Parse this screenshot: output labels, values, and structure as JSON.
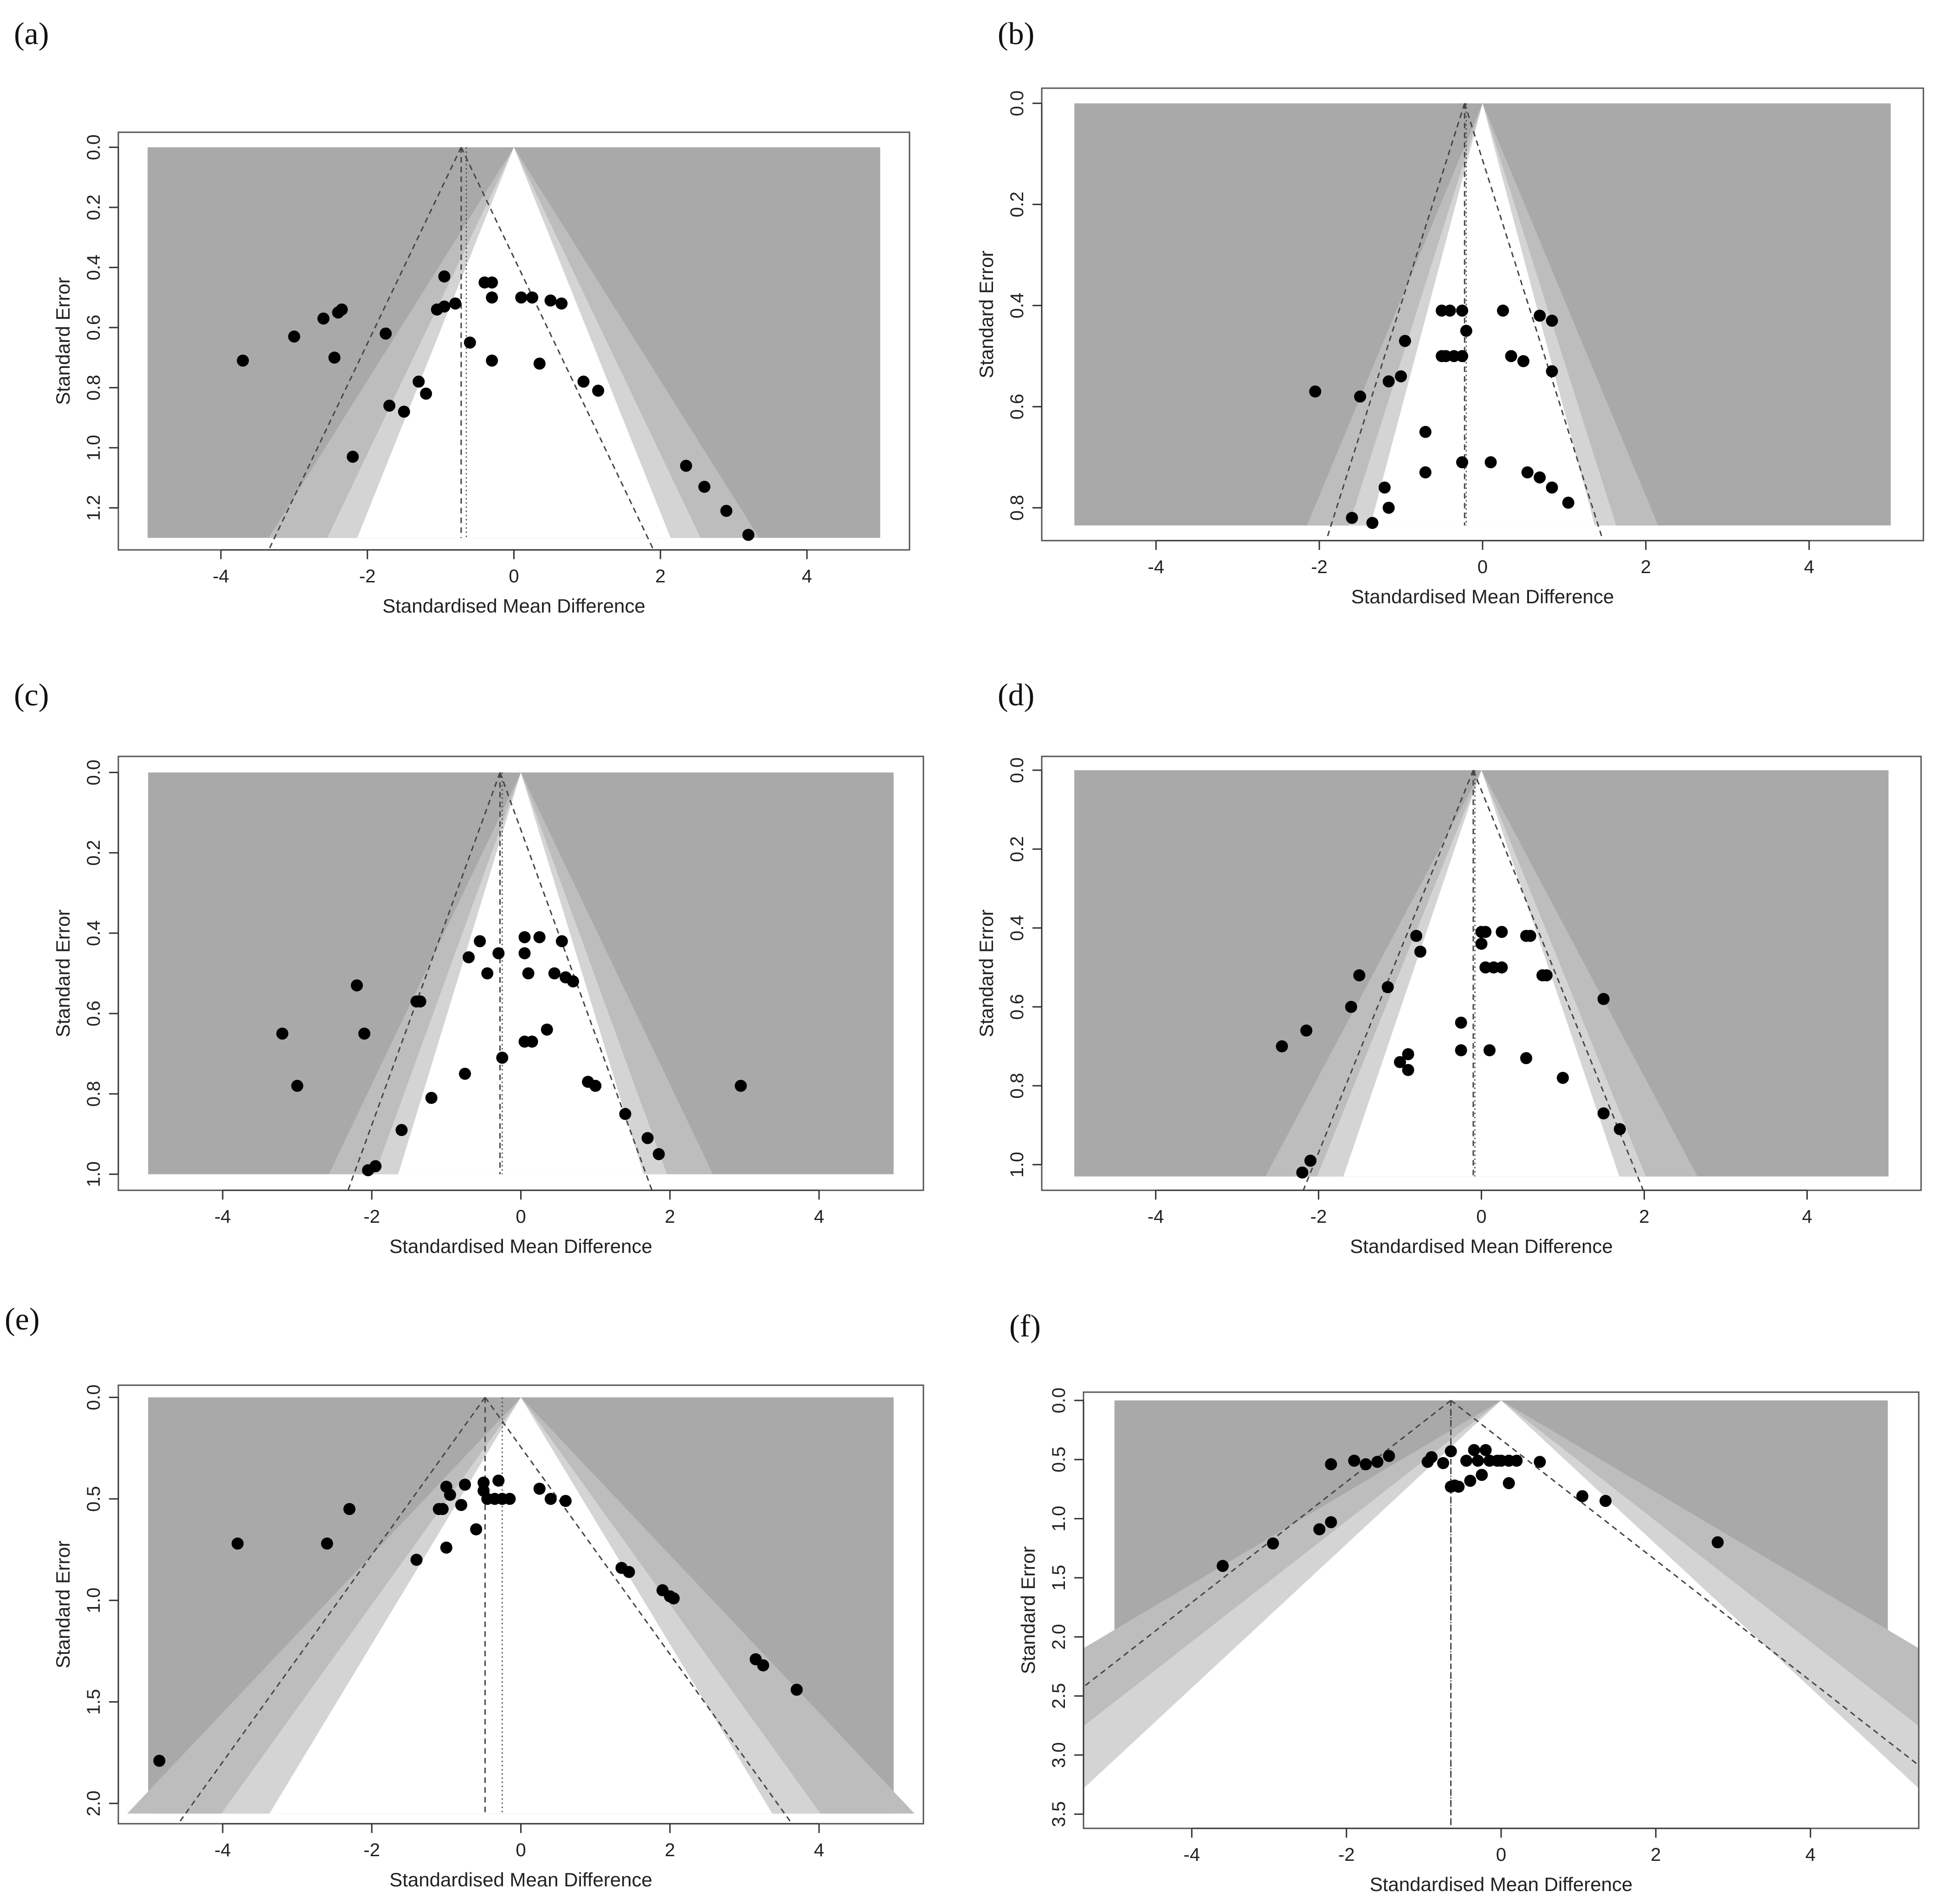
{
  "colors": {
    "outer": "#a9a9a9",
    "mid": "#bdbdbd",
    "inner": "#d4d4d4",
    "white": "#ffffff",
    "point": "#000000",
    "line": "#444444"
  },
  "chart_data": [
    {
      "id": "a",
      "label": "(a)",
      "type": "scatter",
      "xlabel": "Standardised Mean Difference",
      "ylabel": "Standard Error",
      "xlim": [
        -5.4,
        5.4
      ],
      "ylim": [
        1.34,
        -0.05
      ],
      "y_reversed": true,
      "y_max_region": 1.3,
      "xticks": [
        -4,
        -2,
        0,
        2,
        4
      ],
      "yticks": [
        0.0,
        0.2,
        0.4,
        0.6,
        0.8,
        1.0,
        1.2
      ],
      "yticklabels": [
        "0.0",
        "0.2",
        "0.4",
        "0.6",
        "0.8",
        "1.0",
        "1.2"
      ],
      "pooled_estimate": -0.72,
      "dotted_line": -0.65,
      "contour_center": 0,
      "points": [
        [
          -3.7,
          0.71
        ],
        [
          -3.0,
          0.63
        ],
        [
          -2.6,
          0.57
        ],
        [
          -2.4,
          0.55
        ],
        [
          -2.35,
          0.54
        ],
        [
          -2.45,
          0.7
        ],
        [
          -2.2,
          1.03
        ],
        [
          -1.75,
          0.62
        ],
        [
          -1.7,
          0.86
        ],
        [
          -1.5,
          0.88
        ],
        [
          -1.3,
          0.78
        ],
        [
          -1.2,
          0.82
        ],
        [
          -1.05,
          0.54
        ],
        [
          -0.95,
          0.43
        ],
        [
          -0.95,
          0.53
        ],
        [
          -0.8,
          0.52
        ],
        [
          -0.6,
          0.65
        ],
        [
          -0.4,
          0.45
        ],
        [
          -0.3,
          0.45
        ],
        [
          -0.3,
          0.5
        ],
        [
          -0.3,
          0.71
        ],
        [
          0.1,
          0.5
        ],
        [
          0.25,
          0.5
        ],
        [
          0.35,
          0.72
        ],
        [
          0.5,
          0.51
        ],
        [
          0.65,
          0.52
        ],
        [
          0.95,
          0.78
        ],
        [
          1.15,
          0.81
        ],
        [
          2.35,
          1.06
        ],
        [
          2.6,
          1.13
        ],
        [
          2.9,
          1.21
        ],
        [
          3.2,
          1.29
        ]
      ]
    },
    {
      "id": "b",
      "label": "(b)",
      "type": "scatter",
      "xlabel": "Standardised Mean Difference",
      "ylabel": "Standard Error",
      "xlim": [
        -5.4,
        5.4
      ],
      "ylim": [
        0.865,
        -0.03
      ],
      "y_reversed": true,
      "y_max_region": 0.835,
      "xticks": [
        -4,
        -2,
        0,
        2,
        4
      ],
      "yticks": [
        0.0,
        0.2,
        0.4,
        0.6,
        0.8
      ],
      "yticklabels": [
        "0.0",
        "0.2",
        "0.4",
        "0.6",
        "0.8"
      ],
      "pooled_estimate": -0.22,
      "dotted_line": -0.2,
      "contour_center": 0,
      "points": [
        [
          -2.05,
          0.57
        ],
        [
          -1.5,
          0.58
        ],
        [
          -1.6,
          0.82
        ],
        [
          -1.35,
          0.83
        ],
        [
          -1.2,
          0.76
        ],
        [
          -1.15,
          0.8
        ],
        [
          -1.15,
          0.55
        ],
        [
          -1.0,
          0.54
        ],
        [
          -0.95,
          0.47
        ],
        [
          -0.7,
          0.65
        ],
        [
          -0.7,
          0.73
        ],
        [
          -0.5,
          0.41
        ],
        [
          -0.4,
          0.41
        ],
        [
          -0.5,
          0.5
        ],
        [
          -0.45,
          0.5
        ],
        [
          -0.35,
          0.5
        ],
        [
          -0.25,
          0.41
        ],
        [
          -0.2,
          0.45
        ],
        [
          -0.25,
          0.5
        ],
        [
          -0.25,
          0.71
        ],
        [
          0.1,
          0.71
        ],
        [
          0.25,
          0.41
        ],
        [
          0.35,
          0.5
        ],
        [
          0.5,
          0.51
        ],
        [
          0.55,
          0.73
        ],
        [
          0.7,
          0.42
        ],
        [
          0.7,
          0.74
        ],
        [
          0.85,
          0.43
        ],
        [
          0.85,
          0.53
        ],
        [
          0.85,
          0.76
        ],
        [
          1.05,
          0.79
        ]
      ]
    },
    {
      "id": "c",
      "label": "(c)",
      "type": "scatter",
      "xlabel": "Standardised Mean Difference",
      "ylabel": "Standard Error",
      "xlim": [
        -5.4,
        5.4
      ],
      "ylim": [
        1.04,
        -0.04
      ],
      "y_reversed": true,
      "y_max_region": 1.0,
      "xticks": [
        -4,
        -2,
        0,
        2,
        4
      ],
      "yticks": [
        0.0,
        0.2,
        0.4,
        0.6,
        0.8,
        1.0
      ],
      "yticklabels": [
        "0.0",
        "0.2",
        "0.4",
        "0.6",
        "0.8",
        "1.0"
      ],
      "pooled_estimate": -0.28,
      "dotted_line": -0.25,
      "contour_center": 0,
      "points": [
        [
          -3.2,
          0.65
        ],
        [
          -3.0,
          0.78
        ],
        [
          -2.2,
          0.53
        ],
        [
          -2.1,
          0.65
        ],
        [
          -2.05,
          0.99
        ],
        [
          -1.95,
          0.98
        ],
        [
          -1.6,
          0.89
        ],
        [
          -1.4,
          0.57
        ],
        [
          -1.35,
          0.57
        ],
        [
          -1.2,
          0.81
        ],
        [
          -0.75,
          0.75
        ],
        [
          -0.7,
          0.46
        ],
        [
          -0.55,
          0.42
        ],
        [
          -0.45,
          0.5
        ],
        [
          -0.3,
          0.45
        ],
        [
          -0.25,
          0.71
        ],
        [
          0.05,
          0.41
        ],
        [
          0.05,
          0.45
        ],
        [
          0.1,
          0.5
        ],
        [
          0.05,
          0.67
        ],
        [
          0.15,
          0.67
        ],
        [
          0.25,
          0.41
        ],
        [
          0.35,
          0.64
        ],
        [
          0.45,
          0.5
        ],
        [
          0.55,
          0.42
        ],
        [
          0.6,
          0.51
        ],
        [
          0.7,
          0.52
        ],
        [
          0.9,
          0.77
        ],
        [
          1.0,
          0.78
        ],
        [
          1.4,
          0.85
        ],
        [
          1.7,
          0.91
        ],
        [
          1.85,
          0.95
        ],
        [
          2.95,
          0.78
        ]
      ]
    },
    {
      "id": "d",
      "label": "(d)",
      "type": "scatter",
      "xlabel": "Standardised Mean Difference",
      "ylabel": "Standard Error",
      "xlim": [
        -5.4,
        5.4
      ],
      "ylim": [
        1.065,
        -0.035
      ],
      "y_reversed": true,
      "y_max_region": 1.03,
      "xticks": [
        -4,
        -2,
        0,
        2,
        4
      ],
      "yticks": [
        0.0,
        0.2,
        0.4,
        0.6,
        0.8,
        1.0
      ],
      "yticklabels": [
        "0.0",
        "0.2",
        "0.4",
        "0.6",
        "0.8",
        "1.0"
      ],
      "pooled_estimate": -0.1,
      "dotted_line": -0.08,
      "contour_center": 0,
      "points": [
        [
          -2.45,
          0.7
        ],
        [
          -2.15,
          0.66
        ],
        [
          -2.2,
          1.02
        ],
        [
          -2.1,
          0.99
        ],
        [
          -1.6,
          0.6
        ],
        [
          -1.5,
          0.52
        ],
        [
          -1.15,
          0.55
        ],
        [
          -1.0,
          0.74
        ],
        [
          -0.9,
          0.72
        ],
        [
          -0.9,
          0.76
        ],
        [
          -0.8,
          0.42
        ],
        [
          -0.75,
          0.46
        ],
        [
          -0.25,
          0.71
        ],
        [
          -0.25,
          0.64
        ],
        [
          0.0,
          0.41
        ],
        [
          0.05,
          0.41
        ],
        [
          0.0,
          0.44
        ],
        [
          0.05,
          0.5
        ],
        [
          0.15,
          0.5
        ],
        [
          0.25,
          0.5
        ],
        [
          0.1,
          0.71
        ],
        [
          0.25,
          0.41
        ],
        [
          0.55,
          0.42
        ],
        [
          0.6,
          0.42
        ],
        [
          0.55,
          0.73
        ],
        [
          0.75,
          0.52
        ],
        [
          0.8,
          0.52
        ],
        [
          1.0,
          0.78
        ],
        [
          1.5,
          0.58
        ],
        [
          1.5,
          0.87
        ],
        [
          1.7,
          0.91
        ]
      ]
    },
    {
      "id": "e",
      "label": "(e)",
      "type": "scatter",
      "xlabel": "Standardised Mean Difference",
      "ylabel": "Standard Error",
      "xlim": [
        -5.4,
        5.4
      ],
      "ylim": [
        2.1,
        -0.06
      ],
      "y_reversed": true,
      "y_max_region": 2.05,
      "xticks": [
        -4,
        -2,
        0,
        2,
        4
      ],
      "yticks": [
        0.0,
        0.5,
        1.0,
        1.5,
        2.0
      ],
      "yticklabels": [
        "0.0",
        "0.5",
        "1.0",
        "1.5",
        "2.0"
      ],
      "pooled_estimate": -0.48,
      "dotted_line": -0.25,
      "contour_center": 0,
      "points": [
        [
          -4.85,
          1.79
        ],
        [
          -3.8,
          0.72
        ],
        [
          -2.6,
          0.72
        ],
        [
          -2.3,
          0.55
        ],
        [
          -1.4,
          0.8
        ],
        [
          -1.1,
          0.55
        ],
        [
          -1.05,
          0.55
        ],
        [
          -1.0,
          0.44
        ],
        [
          -1.0,
          0.74
        ],
        [
          -0.95,
          0.48
        ],
        [
          -0.8,
          0.53
        ],
        [
          -0.75,
          0.43
        ],
        [
          -0.6,
          0.65
        ],
        [
          -0.5,
          0.42
        ],
        [
          -0.5,
          0.46
        ],
        [
          -0.45,
          0.5
        ],
        [
          -0.35,
          0.5
        ],
        [
          -0.3,
          0.41
        ],
        [
          -0.25,
          0.5
        ],
        [
          -0.15,
          0.5
        ],
        [
          0.25,
          0.45
        ],
        [
          0.4,
          0.5
        ],
        [
          0.6,
          0.51
        ],
        [
          1.35,
          0.84
        ],
        [
          1.45,
          0.86
        ],
        [
          1.9,
          0.95
        ],
        [
          2.0,
          0.98
        ],
        [
          2.05,
          0.99
        ],
        [
          3.15,
          1.29
        ],
        [
          3.25,
          1.32
        ],
        [
          3.7,
          1.44
        ]
      ]
    },
    {
      "id": "f",
      "label": "(f)",
      "type": "scatter",
      "xlabel": "Standardised Mean Difference",
      "ylabel": "Standard Error",
      "xlim": [
        -5.4,
        5.4
      ],
      "ylim": [
        3.62,
        -0.07
      ],
      "y_reversed": true,
      "y_max_region": 3.6,
      "xticks": [
        -4,
        -2,
        0,
        2,
        4
      ],
      "yticks": [
        0.0,
        0.5,
        1.0,
        1.5,
        2.0,
        2.5,
        3.0,
        3.5
      ],
      "yticklabels": [
        "0.0",
        "0.5",
        "1.0",
        "1.5",
        "2.0",
        "2.5",
        "3.0",
        "3.5"
      ],
      "pooled_estimate": -0.65,
      "dotted_line": -0.65,
      "contour_center": 0,
      "points": [
        [
          -3.6,
          1.4
        ],
        [
          -2.95,
          1.21
        ],
        [
          -2.35,
          1.09
        ],
        [
          -2.2,
          1.03
        ],
        [
          -2.2,
          0.54
        ],
        [
          -1.9,
          0.51
        ],
        [
          -1.75,
          0.54
        ],
        [
          -1.6,
          0.52
        ],
        [
          -1.45,
          0.47
        ],
        [
          -0.95,
          0.52
        ],
        [
          -0.9,
          0.48
        ],
        [
          -0.75,
          0.53
        ],
        [
          -0.65,
          0.43
        ],
        [
          -0.6,
          0.72
        ],
        [
          -0.65,
          0.73
        ],
        [
          -0.55,
          0.73
        ],
        [
          -0.45,
          0.51
        ],
        [
          -0.4,
          0.68
        ],
        [
          -0.35,
          0.42
        ],
        [
          -0.3,
          0.51
        ],
        [
          -0.25,
          0.63
        ],
        [
          -0.2,
          0.42
        ],
        [
          -0.15,
          0.51
        ],
        [
          -0.05,
          0.51
        ],
        [
          0.0,
          0.51
        ],
        [
          0.1,
          0.51
        ],
        [
          0.1,
          0.7
        ],
        [
          0.2,
          0.51
        ],
        [
          0.5,
          0.52
        ],
        [
          1.05,
          0.81
        ],
        [
          1.35,
          0.85
        ],
        [
          2.8,
          1.2
        ]
      ]
    }
  ]
}
